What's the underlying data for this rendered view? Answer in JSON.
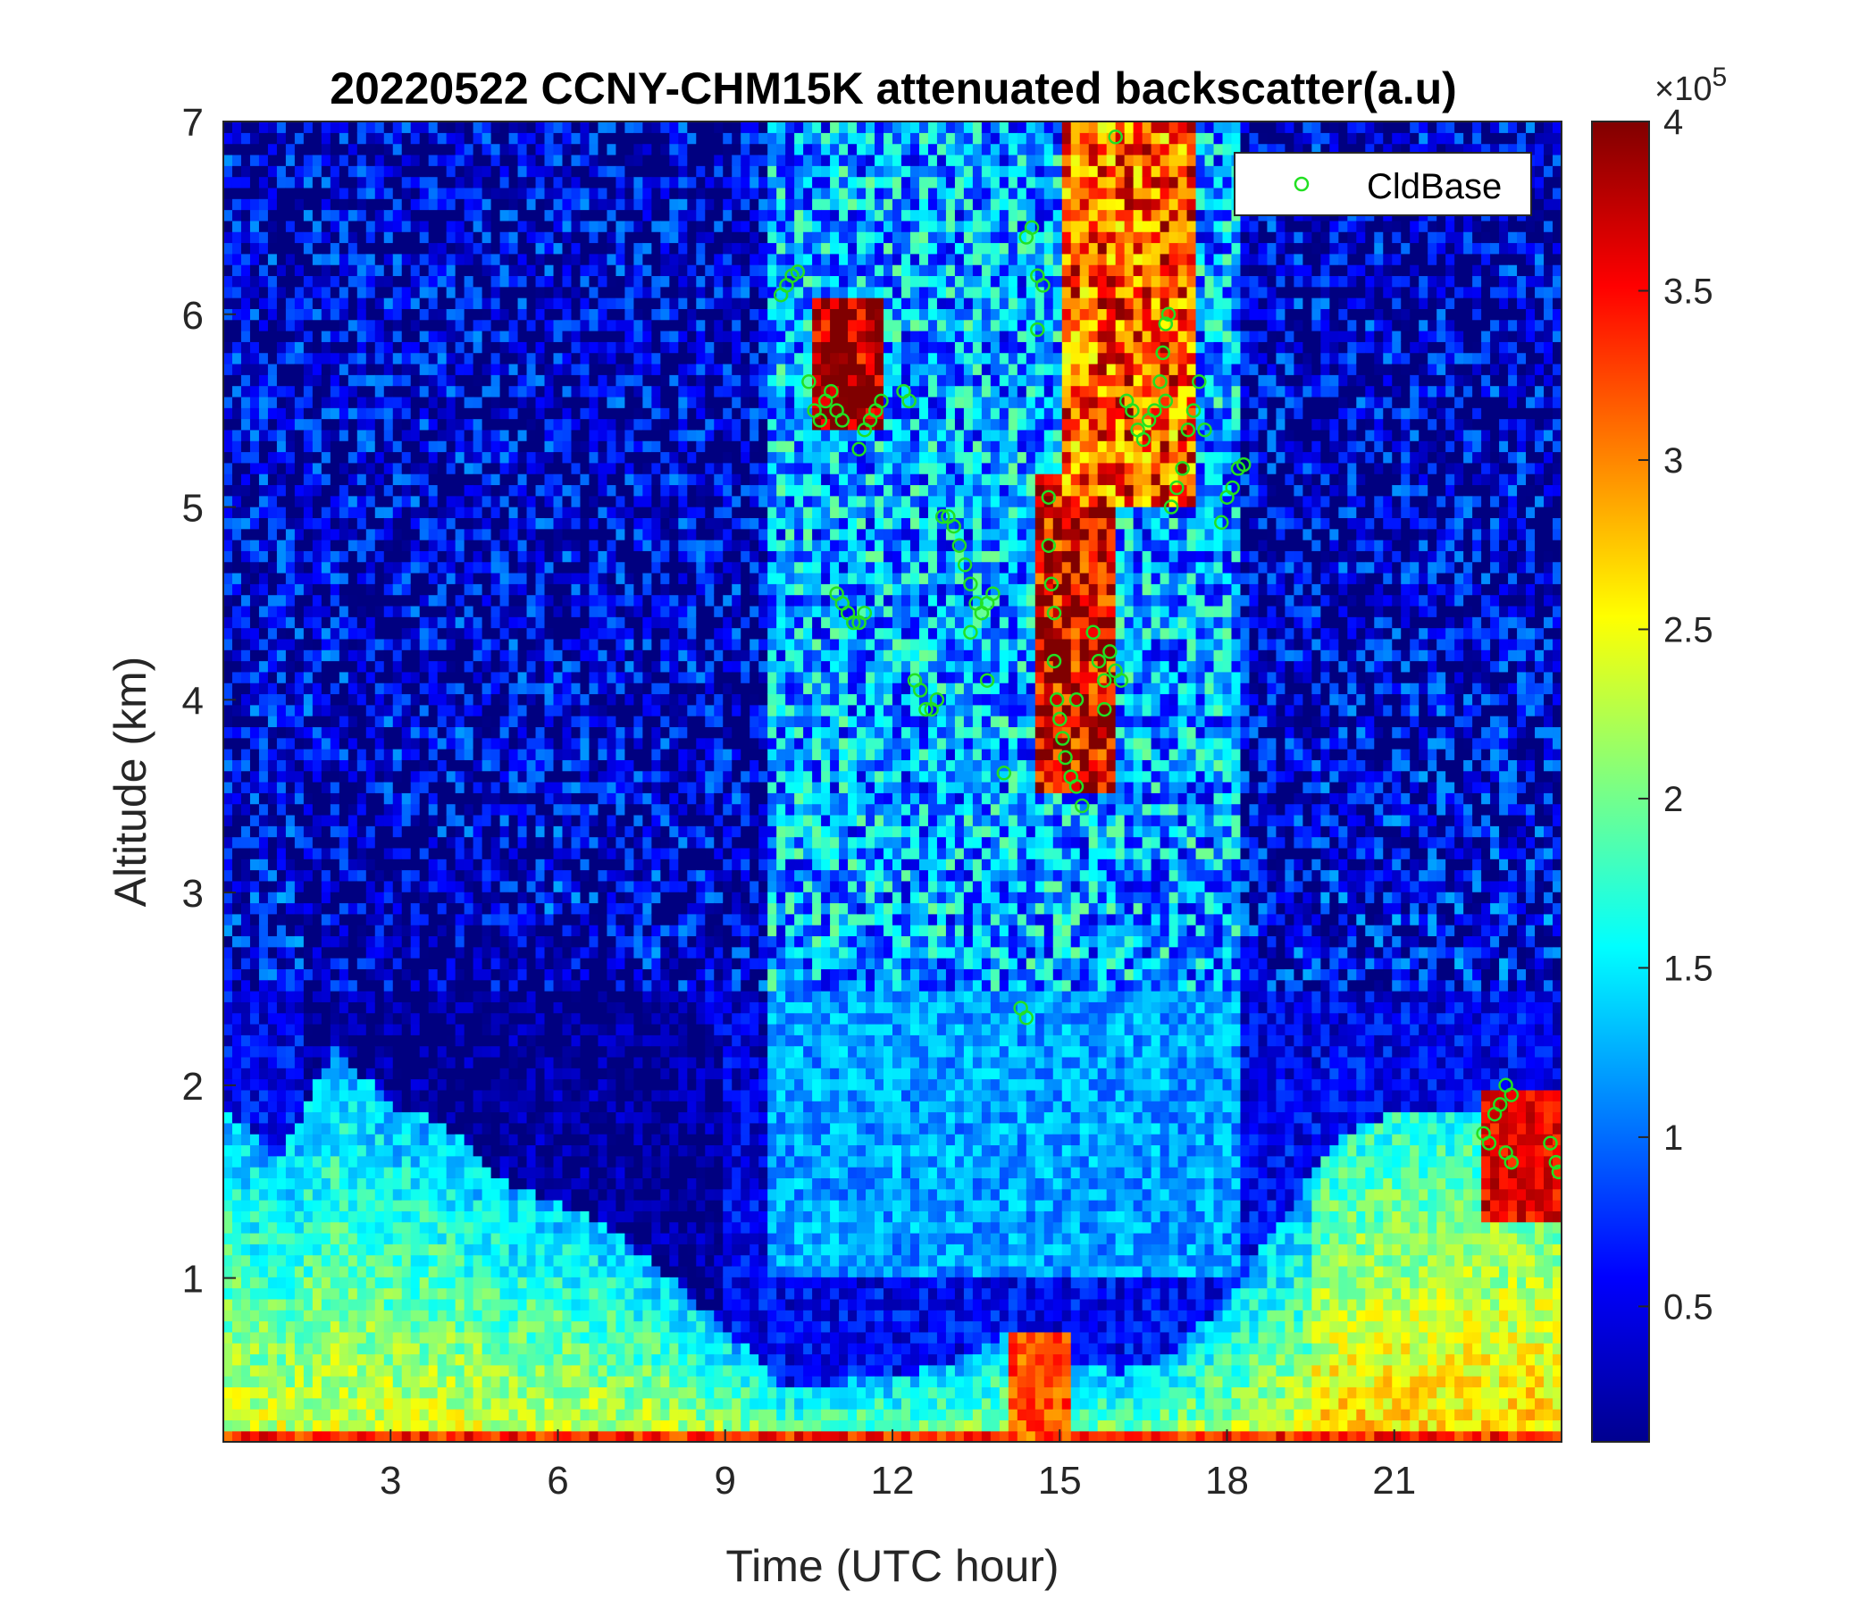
{
  "chart_data": {
    "type": "heatmap",
    "title": "20220522 CCNY-CHM15K attenuated backscatter(a.u)",
    "xlabel": "Time (UTC hour)",
    "ylabel": "Altitude (km)",
    "xlim": [
      0,
      24
    ],
    "ylim": [
      0.15,
      7
    ],
    "xticks": [
      3,
      6,
      9,
      12,
      15,
      18,
      21
    ],
    "yticks": [
      1,
      2,
      3,
      4,
      5,
      6,
      7
    ],
    "colorbar": {
      "colormap": "jet",
      "range": [
        0.1,
        4
      ],
      "ticks": [
        0.5,
        1,
        1.5,
        2,
        2.5,
        3,
        3.5,
        4
      ],
      "exponent_label": "×10",
      "exponent_power": "5"
    },
    "heatmap_levels": {
      "note_units": "×10^5",
      "boundary_layer_top_km": [
        [
          0,
          1.9
        ],
        [
          1,
          1.6
        ],
        [
          2,
          2.2
        ],
        [
          3,
          1.9
        ],
        [
          4,
          1.8
        ],
        [
          5,
          1.5
        ],
        [
          6,
          1.4
        ],
        [
          7,
          1.25
        ],
        [
          8,
          1.0
        ],
        [
          9,
          0.75
        ],
        [
          10,
          0.45
        ],
        [
          11,
          0.45
        ],
        [
          12,
          0.5
        ],
        [
          13,
          0.55
        ],
        [
          14,
          0.7
        ],
        [
          15,
          0.6
        ],
        [
          16,
          0.5
        ],
        [
          17,
          0.6
        ],
        [
          18,
          0.9
        ],
        [
          19,
          1.3
        ],
        [
          20,
          1.75
        ],
        [
          21,
          1.85
        ],
        [
          22,
          1.85
        ],
        [
          23,
          1.9
        ],
        [
          24,
          1.9
        ]
      ]
    },
    "legend": {
      "entries": [
        "CldBase"
      ],
      "placement": "top-right"
    },
    "series": [
      {
        "name": "CldBase",
        "marker": "open-circle",
        "color": "#22e022",
        "points": [
          [
            10.0,
            6.1
          ],
          [
            10.1,
            6.15
          ],
          [
            10.2,
            6.2
          ],
          [
            10.3,
            6.22
          ],
          [
            10.5,
            5.65
          ],
          [
            10.6,
            5.5
          ],
          [
            10.7,
            5.45
          ],
          [
            10.8,
            5.55
          ],
          [
            10.9,
            5.6
          ],
          [
            11.0,
            5.5
          ],
          [
            11.1,
            5.45
          ],
          [
            11.4,
            5.3
          ],
          [
            11.5,
            5.4
          ],
          [
            11.6,
            5.45
          ],
          [
            11.7,
            5.5
          ],
          [
            11.8,
            5.55
          ],
          [
            11.0,
            4.55
          ],
          [
            11.1,
            4.5
          ],
          [
            11.2,
            4.45
          ],
          [
            11.3,
            4.4
          ],
          [
            11.4,
            4.4
          ],
          [
            11.5,
            4.45
          ],
          [
            12.2,
            5.6
          ],
          [
            12.3,
            5.55
          ],
          [
            12.4,
            4.1
          ],
          [
            12.5,
            4.05
          ],
          [
            12.6,
            3.95
          ],
          [
            12.7,
            3.95
          ],
          [
            12.8,
            4.0
          ],
          [
            12.9,
            4.95
          ],
          [
            13.0,
            4.95
          ],
          [
            13.1,
            4.9
          ],
          [
            13.2,
            4.8
          ],
          [
            13.3,
            4.7
          ],
          [
            13.4,
            4.6
          ],
          [
            13.5,
            4.5
          ],
          [
            13.4,
            4.35
          ],
          [
            13.6,
            4.45
          ],
          [
            13.7,
            4.5
          ],
          [
            13.8,
            4.55
          ],
          [
            13.7,
            4.1
          ],
          [
            14.0,
            3.62
          ],
          [
            14.3,
            2.4
          ],
          [
            14.4,
            2.35
          ],
          [
            14.4,
            6.4
          ],
          [
            14.5,
            6.45
          ],
          [
            14.6,
            6.2
          ],
          [
            14.7,
            6.15
          ],
          [
            14.6,
            5.92
          ],
          [
            14.8,
            5.05
          ],
          [
            14.8,
            4.8
          ],
          [
            14.85,
            4.6
          ],
          [
            14.9,
            4.45
          ],
          [
            14.9,
            4.2
          ],
          [
            14.95,
            4.0
          ],
          [
            15.0,
            3.9
          ],
          [
            15.05,
            3.8
          ],
          [
            15.1,
            3.7
          ],
          [
            15.2,
            3.6
          ],
          [
            15.3,
            3.55
          ],
          [
            15.4,
            3.45
          ],
          [
            15.3,
            4.0
          ],
          [
            15.6,
            4.35
          ],
          [
            15.7,
            4.2
          ],
          [
            15.8,
            4.1
          ],
          [
            15.9,
            4.25
          ],
          [
            16.0,
            4.15
          ],
          [
            16.1,
            4.1
          ],
          [
            15.8,
            3.95
          ],
          [
            16.0,
            6.92
          ],
          [
            16.2,
            5.55
          ],
          [
            16.3,
            5.5
          ],
          [
            16.4,
            5.4
          ],
          [
            16.5,
            5.35
          ],
          [
            16.6,
            5.45
          ],
          [
            16.7,
            5.5
          ],
          [
            16.8,
            5.65
          ],
          [
            16.85,
            5.8
          ],
          [
            16.9,
            5.95
          ],
          [
            16.95,
            6.0
          ],
          [
            16.9,
            5.55
          ],
          [
            17.0,
            5.0
          ],
          [
            17.1,
            5.1
          ],
          [
            17.2,
            5.2
          ],
          [
            17.3,
            5.4
          ],
          [
            17.4,
            5.5
          ],
          [
            17.5,
            5.65
          ],
          [
            17.6,
            5.4
          ],
          [
            17.9,
            4.92
          ],
          [
            18.0,
            5.05
          ],
          [
            18.1,
            5.1
          ],
          [
            18.2,
            5.2
          ],
          [
            18.3,
            5.22
          ],
          [
            22.6,
            1.75
          ],
          [
            22.7,
            1.7
          ],
          [
            22.8,
            1.85
          ],
          [
            22.9,
            1.9
          ],
          [
            23.0,
            2.0
          ],
          [
            23.1,
            1.95
          ],
          [
            23.0,
            1.65
          ],
          [
            23.1,
            1.6
          ],
          [
            23.8,
            1.7
          ],
          [
            23.9,
            1.6
          ],
          [
            23.95,
            1.55
          ]
        ]
      }
    ]
  }
}
